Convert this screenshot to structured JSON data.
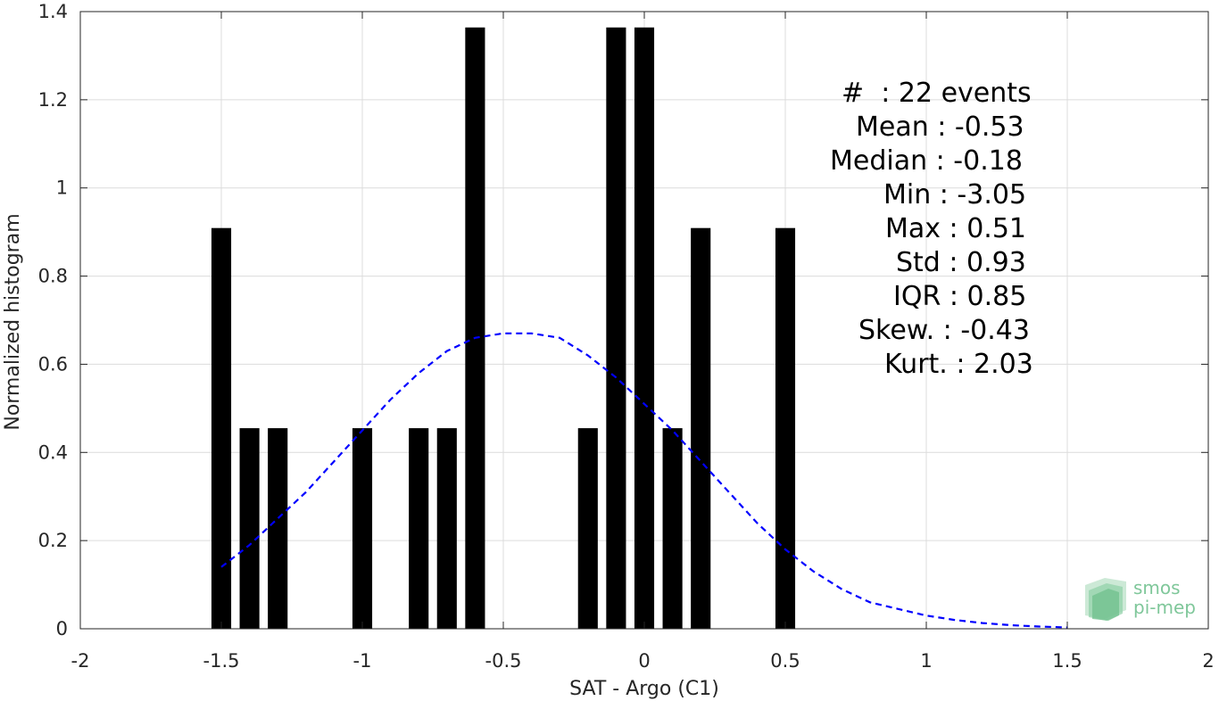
{
  "chart_data": {
    "type": "bar",
    "xlabel": "SAT - Argo (C1)",
    "ylabel": "Normalized histogram",
    "xlim": [
      -2,
      2
    ],
    "ylim": [
      0,
      1.4
    ],
    "xticks": [
      "-2",
      "-1.5",
      "-1",
      "-0.5",
      "0",
      "0.5",
      "1",
      "1.5",
      "2"
    ],
    "yticks": [
      "0",
      "0.2",
      "0.4",
      "0.6",
      "0.8",
      "1",
      "1.2",
      "1.4"
    ],
    "bin_width": 0.1,
    "bars": [
      {
        "x": -1.5,
        "value": 0.909
      },
      {
        "x": -1.4,
        "value": 0.455
      },
      {
        "x": -1.3,
        "value": 0.455
      },
      {
        "x": -1.0,
        "value": 0.455
      },
      {
        "x": -0.8,
        "value": 0.455
      },
      {
        "x": -0.7,
        "value": 0.455
      },
      {
        "x": -0.6,
        "value": 1.364
      },
      {
        "x": -0.2,
        "value": 0.455
      },
      {
        "x": -0.1,
        "value": 1.364
      },
      {
        "x": 0.0,
        "value": 1.364
      },
      {
        "x": 0.1,
        "value": 0.455
      },
      {
        "x": 0.2,
        "value": 0.909
      },
      {
        "x": 0.5,
        "value": 0.909
      }
    ],
    "fit_curve": {
      "style": "dashed",
      "color": "#0000ff",
      "x": [
        -1.5,
        -1.4,
        -1.3,
        -1.2,
        -1.1,
        -1.0,
        -0.9,
        -0.8,
        -0.7,
        -0.6,
        -0.5,
        -0.4,
        -0.3,
        -0.2,
        -0.1,
        0.0,
        0.1,
        0.2,
        0.3,
        0.4,
        0.5,
        0.6,
        0.7,
        0.8,
        0.9,
        1.0,
        1.1,
        1.2,
        1.3,
        1.4,
        1.5
      ],
      "y": [
        0.14,
        0.19,
        0.25,
        0.31,
        0.38,
        0.45,
        0.52,
        0.58,
        0.63,
        0.66,
        0.67,
        0.67,
        0.66,
        0.62,
        0.57,
        0.51,
        0.45,
        0.38,
        0.31,
        0.24,
        0.18,
        0.13,
        0.09,
        0.06,
        0.045,
        0.03,
        0.02,
        0.013,
        0.008,
        0.005,
        0.003
      ]
    },
    "grid": true,
    "bar_color": "#000000"
  },
  "stats": [
    {
      "label": "#  : ",
      "value": "22 events"
    },
    {
      "label": "Mean : ",
      "value": "-0.53"
    },
    {
      "label": "Median : ",
      "value": "-0.18"
    },
    {
      "label": "Min : ",
      "value": "-3.05"
    },
    {
      "label": "Max : ",
      "value": "0.51"
    },
    {
      "label": "Std : ",
      "value": "0.93"
    },
    {
      "label": "IQR : ",
      "value": "0.85"
    },
    {
      "label": "Skew. : ",
      "value": "-0.43"
    },
    {
      "label": "Kurt. : ",
      "value": "2.03"
    }
  ],
  "logo": {
    "line1": "smos",
    "line2": "pi-mep",
    "color": "#7fc79a"
  }
}
